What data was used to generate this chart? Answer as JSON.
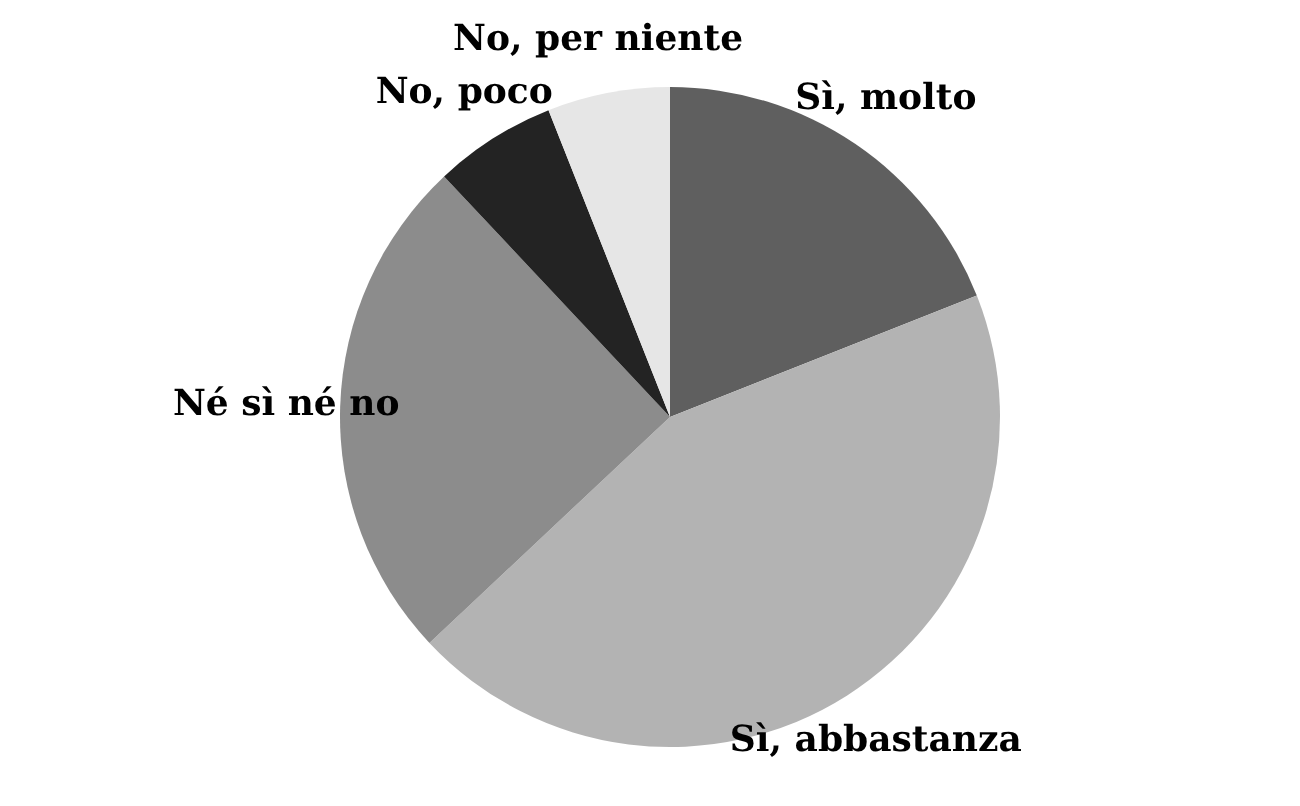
{
  "chart_data": {
    "type": "pie",
    "categories": [
      "Sì, molto",
      "Sì, abbastanza",
      "Né sì né no",
      "No, poco",
      "No, per niente"
    ],
    "values": [
      19,
      44,
      25,
      6,
      6
    ],
    "colors": [
      "#5f5f5f",
      "#b3b3b3",
      "#8c8c8c",
      "#232323",
      "#e6e6e6"
    ]
  }
}
